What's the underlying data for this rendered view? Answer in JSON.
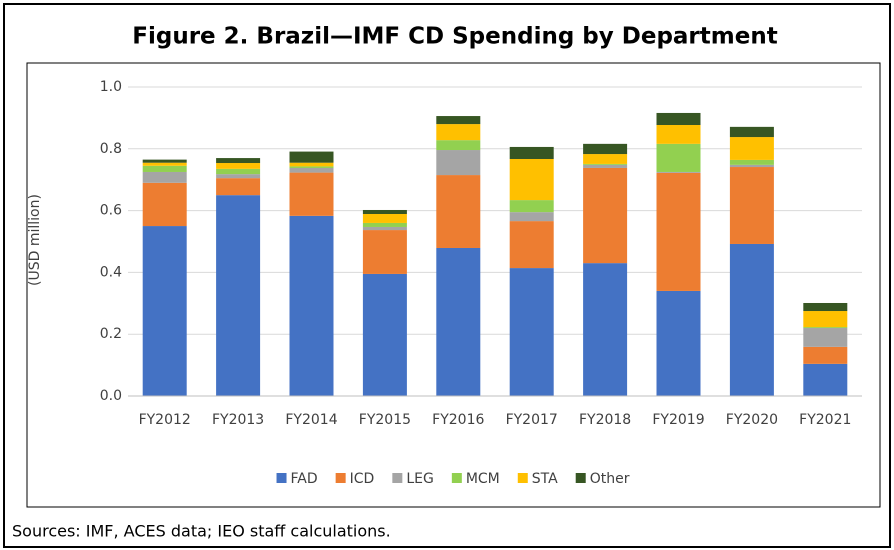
{
  "chart_data": {
    "type": "stacked_bar",
    "title": "Figure 2. Brazil—IMF CD Spending by Department",
    "y_label": "(USD million)",
    "footnote": "Sources: IMF, ACES data; IEO staff calculations.",
    "categories": [
      "FY2012",
      "FY2013",
      "FY2014",
      "FY2015",
      "FY2016",
      "FY2017",
      "FY2018",
      "FY2019",
      "FY2020",
      "FY2021"
    ],
    "series": [
      {
        "name": "FAD",
        "color": "#4472c4",
        "values": [
          0.55,
          0.65,
          0.583,
          0.395,
          0.479,
          0.414,
          0.43,
          0.34,
          0.492,
          0.104
        ]
      },
      {
        "name": "ICD",
        "color": "#ed7d31",
        "values": [
          0.14,
          0.055,
          0.14,
          0.142,
          0.236,
          0.152,
          0.308,
          0.382,
          0.249,
          0.055
        ]
      },
      {
        "name": "LEG",
        "color": "#a5a5a5",
        "values": [
          0.035,
          0.013,
          0.015,
          0.01,
          0.081,
          0.029,
          0.01,
          0.003,
          0.007,
          0.061
        ]
      },
      {
        "name": "MCM",
        "color": "#92d050",
        "values": [
          0.02,
          0.017,
          0.005,
          0.013,
          0.032,
          0.039,
          0.003,
          0.091,
          0.016,
          0.003
        ]
      },
      {
        "name": "STA",
        "color": "#ffc000",
        "values": [
          0.01,
          0.019,
          0.012,
          0.029,
          0.052,
          0.133,
          0.032,
          0.061,
          0.074,
          0.052
        ]
      },
      {
        "name": "Other",
        "color": "#375623",
        "values": [
          0.01,
          0.016,
          0.036,
          0.013,
          0.026,
          0.039,
          0.033,
          0.039,
          0.033,
          0.026
        ]
      }
    ],
    "ylim": [
      0,
      1
    ],
    "yticks": [
      {
        "value": 0,
        "label": "0.0"
      },
      0.2,
      0.4,
      0.6,
      0.8,
      {
        "value": 1,
        "label": "1.0"
      }
    ],
    "grid": true,
    "legend": "bottom"
  }
}
